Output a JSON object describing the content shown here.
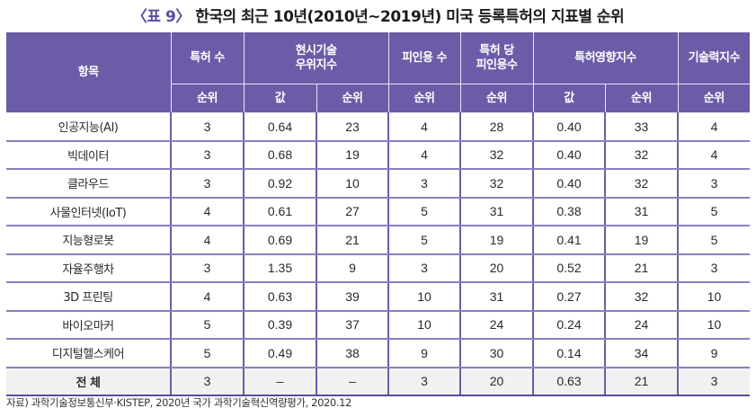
{
  "title": {
    "tag": "〈표 9〉",
    "text": "한국의 최근 10년(2010년~2019년) 미국 등록특허의 지표별 순위"
  },
  "table": {
    "header_top": {
      "item": "항목",
      "patents": "특허 수",
      "rta_line1": "현시기술",
      "rta_line2": "우위지수",
      "citations": "피인용 수",
      "cpp_line1": "특허 당",
      "cpp_line2": "피인용수",
      "pii": "특허영향지수",
      "ts": "기술력지수"
    },
    "header_sub": [
      "순위",
      "값",
      "순위",
      "순위",
      "순위",
      "값",
      "순위",
      "순위"
    ],
    "rows": [
      {
        "item": "인공지능(AI)",
        "patents_rank": "3",
        "rta_value": "0.64",
        "rta_rank": "23",
        "citations_rank": "4",
        "cpp_rank": "28",
        "pii_value": "0.40",
        "pii_rank": "33",
        "ts_rank": "4"
      },
      {
        "item": "빅데이터",
        "patents_rank": "3",
        "rta_value": "0.68",
        "rta_rank": "19",
        "citations_rank": "4",
        "cpp_rank": "32",
        "pii_value": "0.40",
        "pii_rank": "32",
        "ts_rank": "4"
      },
      {
        "item": "클라우드",
        "patents_rank": "3",
        "rta_value": "0.92",
        "rta_rank": "10",
        "citations_rank": "3",
        "cpp_rank": "32",
        "pii_value": "0.40",
        "pii_rank": "32",
        "ts_rank": "3"
      },
      {
        "item": "사물인터넷(IoT)",
        "patents_rank": "4",
        "rta_value": "0.61",
        "rta_rank": "27",
        "citations_rank": "5",
        "cpp_rank": "31",
        "pii_value": "0.38",
        "pii_rank": "31",
        "ts_rank": "5"
      },
      {
        "item": "지능형로봇",
        "patents_rank": "4",
        "rta_value": "0.69",
        "rta_rank": "21",
        "citations_rank": "5",
        "cpp_rank": "19",
        "pii_value": "0.41",
        "pii_rank": "19",
        "ts_rank": "5"
      },
      {
        "item": "자율주행차",
        "patents_rank": "3",
        "rta_value": "1.35",
        "rta_rank": "9",
        "citations_rank": "3",
        "cpp_rank": "20",
        "pii_value": "0.52",
        "pii_rank": "21",
        "ts_rank": "3"
      },
      {
        "item": "3D 프린팅",
        "patents_rank": "4",
        "rta_value": "0.63",
        "rta_rank": "39",
        "citations_rank": "10",
        "cpp_rank": "31",
        "pii_value": "0.27",
        "pii_rank": "32",
        "ts_rank": "10"
      },
      {
        "item": "바이오마커",
        "patents_rank": "5",
        "rta_value": "0.39",
        "rta_rank": "37",
        "citations_rank": "10",
        "cpp_rank": "24",
        "pii_value": "0.24",
        "pii_rank": "24",
        "ts_rank": "10"
      },
      {
        "item": "디지털헬스케어",
        "patents_rank": "5",
        "rta_value": "0.49",
        "rta_rank": "38",
        "citations_rank": "9",
        "cpp_rank": "30",
        "pii_value": "0.14",
        "pii_rank": "34",
        "ts_rank": "9"
      }
    ],
    "total": {
      "item": "전 체",
      "patents_rank": "3",
      "rta_value": "–",
      "rta_rank": "–",
      "citations_rank": "3",
      "cpp_rank": "20",
      "pii_value": "0.63",
      "pii_rank": "21",
      "ts_rank": "3"
    }
  },
  "source": "자료) 과학기술정보통신부·KISTEP, 2020년 국가 과학기술혁신역량평가, 2020.12",
  "colors": {
    "header_bg": "#6c5ca8",
    "grid_line": "#6c5ca8",
    "total_row_bg": "#f1f1f1"
  }
}
